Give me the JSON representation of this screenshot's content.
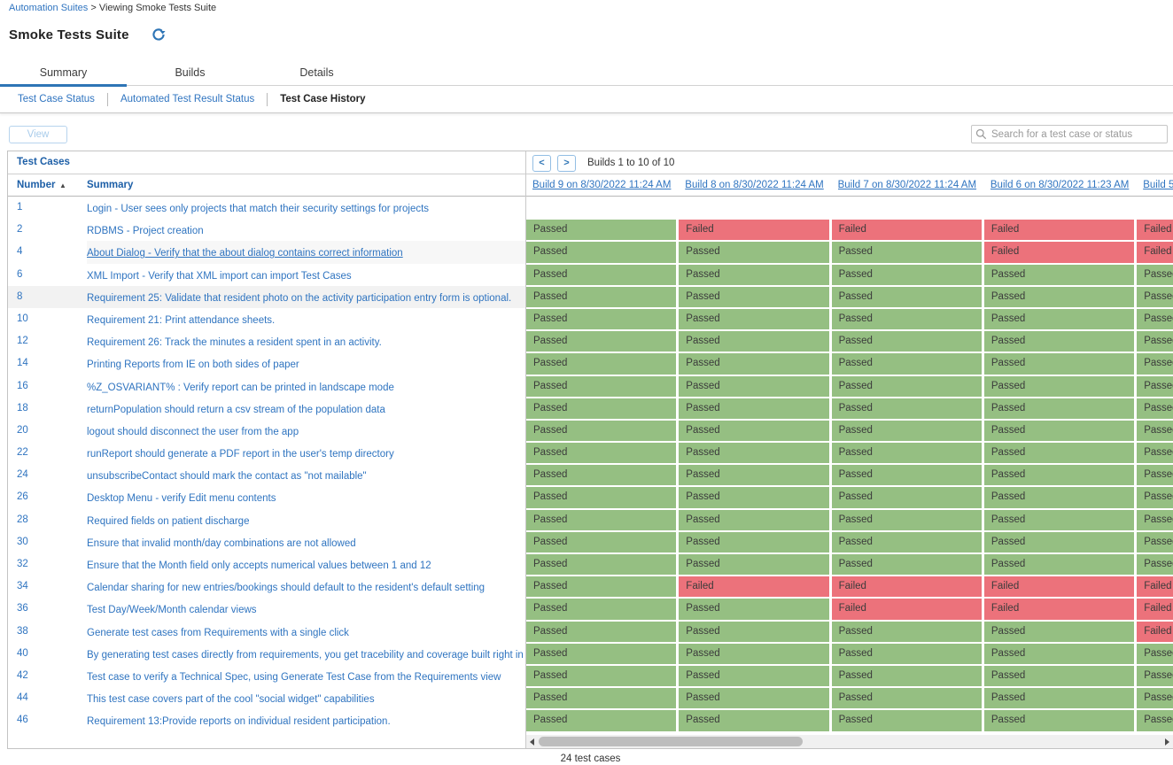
{
  "breadcrumb": {
    "link": "Automation Suites",
    "separator": ">",
    "current": "Viewing Smoke Tests Suite"
  },
  "page": {
    "title": "Smoke Tests Suite"
  },
  "tabs": [
    {
      "label": "Summary",
      "active": true
    },
    {
      "label": "Builds",
      "active": false
    },
    {
      "label": "Details",
      "active": false
    }
  ],
  "subtabs": [
    {
      "label": "Test Case Status",
      "active": false
    },
    {
      "label": "Automated Test Result Status",
      "active": false
    },
    {
      "label": "Test Case History",
      "active": true
    }
  ],
  "toolbar": {
    "view_label": "View",
    "search_placeholder": "Search for a test case or status"
  },
  "table": {
    "title": "Test Cases",
    "pager": {
      "prev": "<",
      "next": ">",
      "label": "Builds 1 to 10 of 10"
    },
    "columns": {
      "number": "Number",
      "sort_arrow": "▲",
      "summary": "Summary"
    },
    "build_columns": [
      "Build 9 on 8/30/2022 11:24 AM",
      "Build 8 on 8/30/2022 11:24 AM",
      "Build 7 on 8/30/2022 11:24 AM",
      "Build 6 on 8/30/2022 11:23 AM",
      "Build 5"
    ],
    "colors": {
      "passed_bg": "#95bf82",
      "failed_bg": "#ec727b",
      "link_blue": "#2f74c0",
      "header_blue": "#1d5fa7",
      "accent_blue": "#2e75b6"
    },
    "rows": [
      {
        "number": "1",
        "summary": "Login - User sees only projects that match their security settings for projects",
        "statuses": []
      },
      {
        "number": "2",
        "summary": "RDBMS - Project creation",
        "statuses": [
          "Passed",
          "Failed",
          "Failed",
          "Failed",
          "Failed"
        ]
      },
      {
        "number": "4",
        "summary": "About Dialog - Verify that the about dialog contains correct information",
        "statuses": [
          "Passed",
          "Passed",
          "Passed",
          "Failed",
          "Failed"
        ],
        "highlight": "summary",
        "underline": true
      },
      {
        "number": "6",
        "summary": "XML Import - Verify that XML import can import Test Cases",
        "statuses": [
          "Passed",
          "Passed",
          "Passed",
          "Passed",
          "Passed"
        ]
      },
      {
        "number": "8",
        "summary": "Requirement 25: Validate that resident photo on the activity participation entry form is optional.",
        "statuses": [
          "Passed",
          "Passed",
          "Passed",
          "Passed",
          "Passed"
        ],
        "highlight": "row"
      },
      {
        "number": "10",
        "summary": "Requirement 21: Print attendance sheets.",
        "statuses": [
          "Passed",
          "Passed",
          "Passed",
          "Passed",
          "Passed"
        ]
      },
      {
        "number": "12",
        "summary": "Requirement 26: Track the minutes a resident spent in an activity.",
        "statuses": [
          "Passed",
          "Passed",
          "Passed",
          "Passed",
          "Passed"
        ]
      },
      {
        "number": "14",
        "summary": "Printing Reports from IE on both sides of paper",
        "statuses": [
          "Passed",
          "Passed",
          "Passed",
          "Passed",
          "Passed"
        ]
      },
      {
        "number": "16",
        "summary": "%Z_OSVARIANT% : Verify report can be printed in landscape mode",
        "statuses": [
          "Passed",
          "Passed",
          "Passed",
          "Passed",
          "Passed"
        ]
      },
      {
        "number": "18",
        "summary": "returnPopulation should return a csv stream of the population data",
        "statuses": [
          "Passed",
          "Passed",
          "Passed",
          "Passed",
          "Passed"
        ]
      },
      {
        "number": "20",
        "summary": "logout should disconnect the user from the app",
        "statuses": [
          "Passed",
          "Passed",
          "Passed",
          "Passed",
          "Passed"
        ]
      },
      {
        "number": "22",
        "summary": "runReport should generate a PDF report in the user's temp directory",
        "statuses": [
          "Passed",
          "Passed",
          "Passed",
          "Passed",
          "Passed"
        ]
      },
      {
        "number": "24",
        "summary": "unsubscribeContact should mark the contact as \"not mailable\"",
        "statuses": [
          "Passed",
          "Passed",
          "Passed",
          "Passed",
          "Passed"
        ]
      },
      {
        "number": "26",
        "summary": "Desktop Menu - verify Edit menu contents",
        "statuses": [
          "Passed",
          "Passed",
          "Passed",
          "Passed",
          "Passed"
        ]
      },
      {
        "number": "28",
        "summary": "Required fields on patient discharge",
        "statuses": [
          "Passed",
          "Passed",
          "Passed",
          "Passed",
          "Passed"
        ]
      },
      {
        "number": "30",
        "summary": "Ensure that invalid month/day combinations are not allowed",
        "statuses": [
          "Passed",
          "Passed",
          "Passed",
          "Passed",
          "Passed"
        ]
      },
      {
        "number": "32",
        "summary": "Ensure that the Month field only accepts numerical values between 1 and 12",
        "statuses": [
          "Passed",
          "Passed",
          "Passed",
          "Passed",
          "Passed"
        ]
      },
      {
        "number": "34",
        "summary": "Calendar sharing for new entries/bookings should default to the resident's default setting",
        "statuses": [
          "Passed",
          "Failed",
          "Failed",
          "Failed",
          "Failed"
        ]
      },
      {
        "number": "36",
        "summary": "Test Day/Week/Month calendar views",
        "statuses": [
          "Passed",
          "Passed",
          "Failed",
          "Failed",
          "Failed"
        ]
      },
      {
        "number": "38",
        "summary": "Generate test cases from Requirements with a single click",
        "statuses": [
          "Passed",
          "Passed",
          "Passed",
          "Passed",
          "Failed"
        ]
      },
      {
        "number": "40",
        "summary": "By generating test cases directly from requirements, you get tracebility and coverage built right in",
        "statuses": [
          "Passed",
          "Passed",
          "Passed",
          "Passed",
          "Passed"
        ]
      },
      {
        "number": "42",
        "summary": "Test case to verify a Technical Spec, using Generate Test Case from the Requirements view",
        "statuses": [
          "Passed",
          "Passed",
          "Passed",
          "Passed",
          "Passed"
        ]
      },
      {
        "number": "44",
        "summary": "This test case covers part of the cool \"social widget\" capabilities",
        "statuses": [
          "Passed",
          "Passed",
          "Passed",
          "Passed",
          "Passed"
        ]
      },
      {
        "number": "46",
        "summary": "Requirement 13:Provide reports on individual resident participation.",
        "statuses": [
          "Passed",
          "Passed",
          "Passed",
          "Passed",
          "Passed"
        ]
      }
    ],
    "footer": "24 test cases"
  }
}
